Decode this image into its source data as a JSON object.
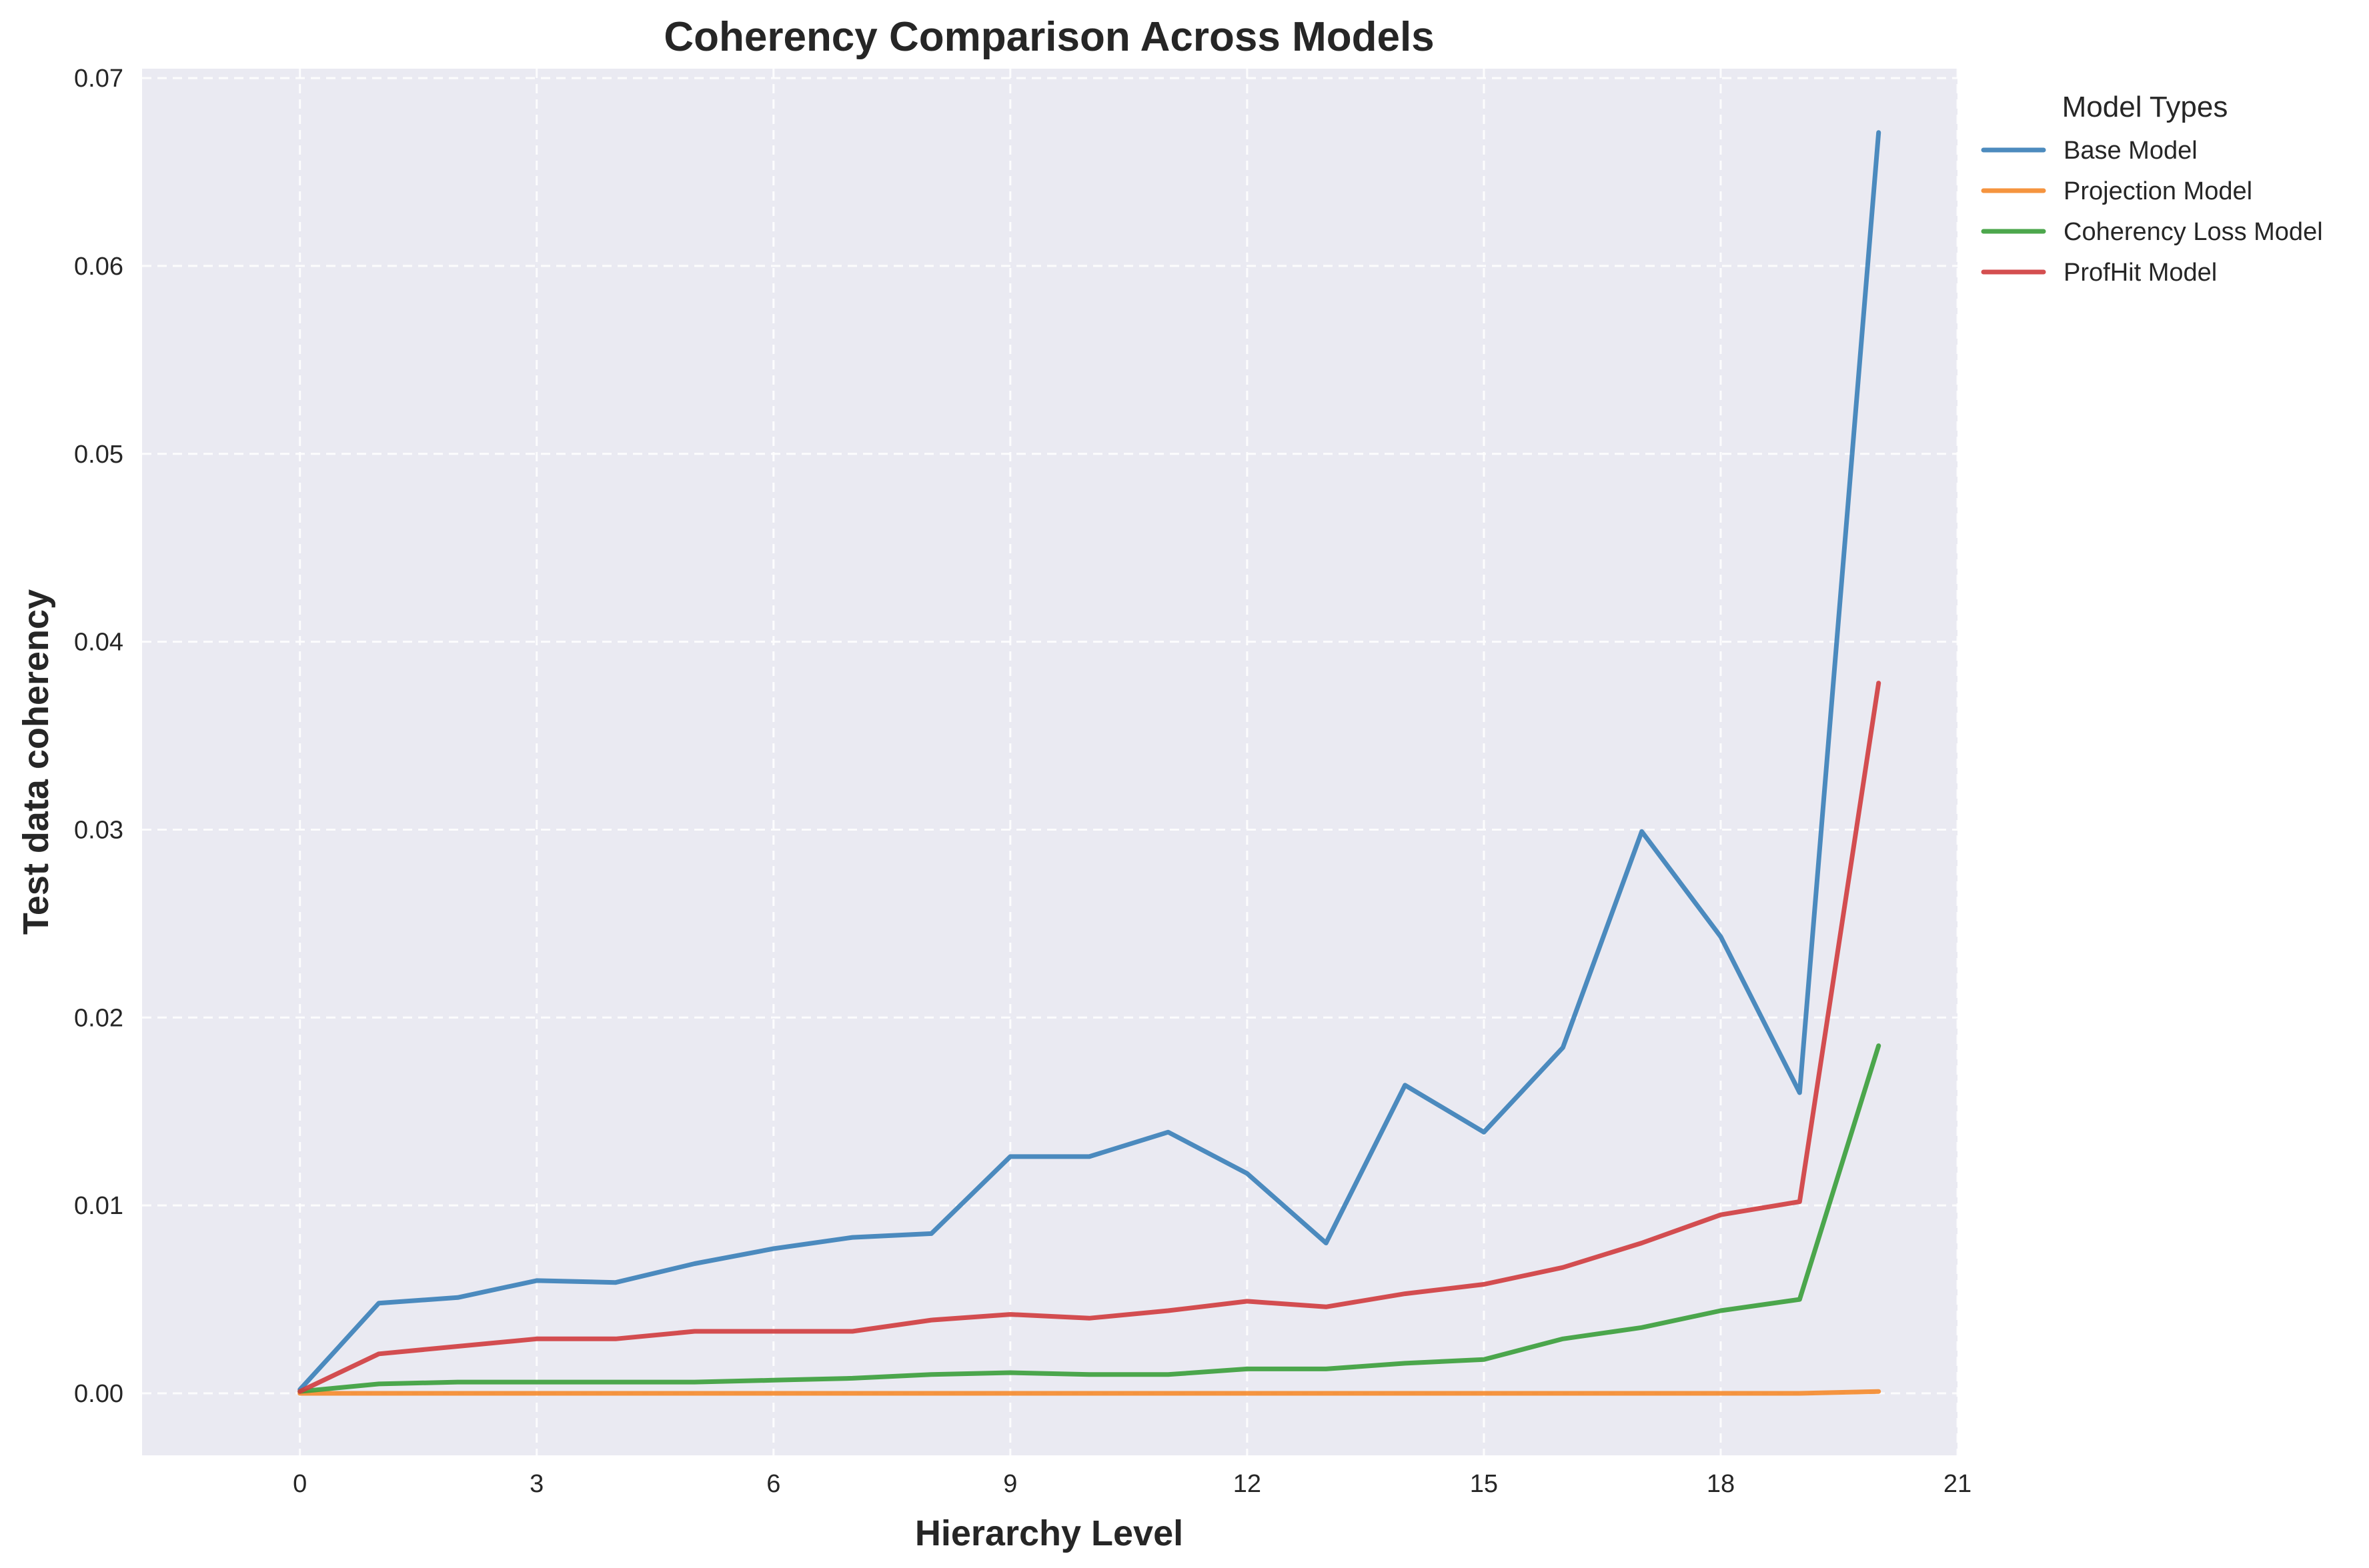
{
  "chart_data": {
    "type": "line",
    "title": "Coherency Comparison Across Models",
    "xlabel": "Hierarchy Level",
    "ylabel": "Test data coherency",
    "xlim": [
      -2,
      21
    ],
    "ylim": [
      -0.0033,
      0.0705
    ],
    "xticks": [
      0,
      3,
      6,
      9,
      12,
      15,
      18,
      21
    ],
    "xtick_labels": [
      "0",
      "3",
      "6",
      "9",
      "12",
      "15",
      "18",
      "21"
    ],
    "yticks": [
      0.0,
      0.01,
      0.02,
      0.03,
      0.04,
      0.05,
      0.06,
      0.07
    ],
    "ytick_labels": [
      "0.00",
      "0.01",
      "0.02",
      "0.03",
      "0.04",
      "0.05",
      "0.06",
      "0.07"
    ],
    "grid": true,
    "legend": {
      "title": "Model Types",
      "placement": "outside-top-right"
    },
    "x": [
      0,
      1,
      2,
      3,
      4,
      5,
      6,
      7,
      8,
      9,
      10,
      11,
      12,
      13,
      14,
      15,
      16,
      17,
      18,
      19,
      20
    ],
    "series": [
      {
        "name": "Base Model",
        "color": "#3a7fb8",
        "values": [
          0.0002,
          0.0048,
          0.0051,
          0.006,
          0.0059,
          0.0069,
          0.0077,
          0.0083,
          0.0085,
          0.0126,
          0.0126,
          0.0139,
          0.0117,
          0.008,
          0.0164,
          0.0139,
          0.0184,
          0.0299,
          0.0243,
          0.016,
          0.0671
        ]
      },
      {
        "name": "Projection Model",
        "color": "#f5892b",
        "values": [
          0.0,
          0.0,
          0.0,
          0.0,
          0.0,
          0.0,
          0.0,
          0.0,
          0.0,
          0.0,
          0.0,
          0.0,
          0.0,
          0.0,
          0.0,
          0.0,
          0.0,
          0.0,
          0.0,
          0.0,
          0.0001
        ]
      },
      {
        "name": "Coherency Loss Model",
        "color": "#3a9e3a",
        "values": [
          0.0001,
          0.0005,
          0.0006,
          0.0006,
          0.0006,
          0.0006,
          0.0007,
          0.0008,
          0.001,
          0.0011,
          0.001,
          0.001,
          0.0013,
          0.0013,
          0.0016,
          0.0018,
          0.0029,
          0.0035,
          0.0044,
          0.005,
          0.0185
        ]
      },
      {
        "name": "ProfHit Model",
        "color": "#d03c3e",
        "values": [
          0.0001,
          0.0021,
          0.0025,
          0.0029,
          0.0029,
          0.0033,
          0.0033,
          0.0033,
          0.0039,
          0.0042,
          0.004,
          0.0044,
          0.0049,
          0.0046,
          0.0053,
          0.0058,
          0.0067,
          0.008,
          0.0095,
          0.0102,
          0.0378
        ]
      }
    ]
  }
}
